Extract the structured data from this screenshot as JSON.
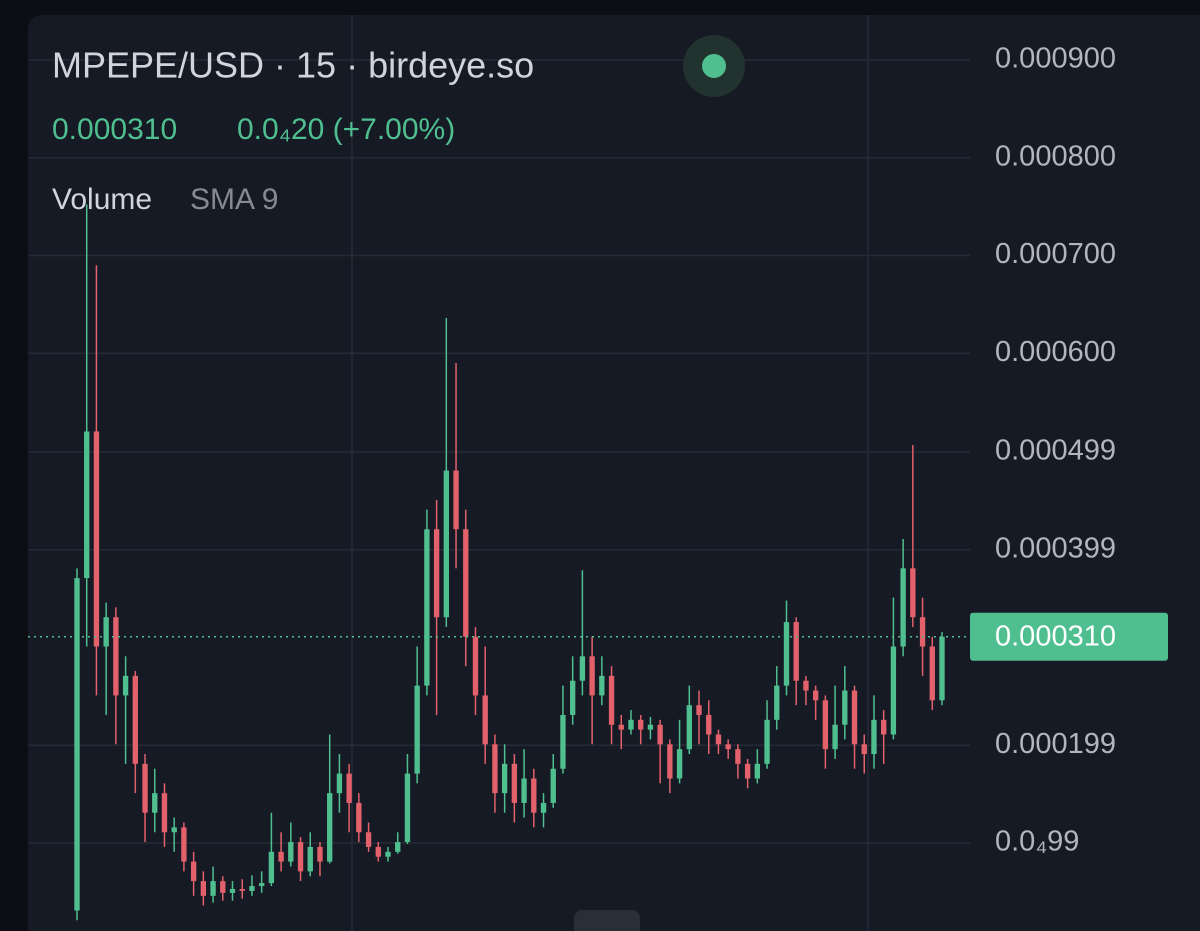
{
  "chart_data": {
    "type": "candlestick",
    "title": "MPEPE/USD · 15 · birdeye.so",
    "change": "0.0₄20 (+7.00%)",
    "indicator": "Volume",
    "indicator_setting": "SMA 9",
    "last_price": {
      "value": 0.00031,
      "label": "0.000310"
    },
    "up_color": "#4fbf8f",
    "down_color": "#e2616b",
    "ylim": [
      9e-06,
      0.000946
    ],
    "yticks": [
      {
        "value": 0.0009,
        "label": "0.000900"
      },
      {
        "value": 0.0008,
        "label": "0.000800"
      },
      {
        "value": 0.0007,
        "label": "0.000700"
      },
      {
        "value": 0.0006,
        "label": "0.000600"
      },
      0.000499,
      0.000399,
      0.000199,
      {
        "value": 9.9e-05,
        "label": "0.0₄99"
      }
    ],
    "grid": true,
    "series": [
      {
        "open": [
          3e-05,
          0.00037,
          0.00052,
          0.0003,
          0.00033,
          0.00025,
          0.00027,
          0.00018,
          0.00013,
          0.00015,
          0.00011,
          0.000115,
          8e-05,
          6e-05,
          4.5e-05,
          6e-05,
          4.8e-05,
          5.2e-05,
          5e-05,
          5.5e-05,
          5.8e-05,
          9e-05,
          8e-05,
          0.0001,
          7e-05,
          9.5e-05,
          8e-05,
          0.00015,
          0.00017,
          0.00014,
          0.00011,
          9.5e-05,
          8.5e-05,
          9e-05,
          0.0001,
          0.00017,
          0.00026,
          0.00042,
          0.00033,
          0.00048,
          0.00042,
          0.00031,
          0.00025,
          0.0002,
          0.00015,
          0.00018,
          0.00014,
          0.000165,
          0.00013,
          0.00014,
          0.000175,
          0.00023,
          0.000265,
          0.00029,
          0.00025,
          0.00027,
          0.00022,
          0.000215,
          0.000225,
          0.000215,
          0.00022,
          0.0002,
          0.000165,
          0.000195,
          0.00024,
          0.00023,
          0.00021,
          0.0002,
          0.000195,
          0.00018,
          0.000165,
          0.00018,
          0.000225,
          0.00026,
          0.000325,
          0.000265,
          0.000255,
          0.000245,
          0.000195,
          0.00022,
          0.000255,
          0.0002,
          0.00019,
          0.000225,
          0.00021,
          0.0003,
          0.00038,
          0.00033,
          0.0003,
          0.000245
        ],
        "high": [
          0.00038,
          0.000752,
          0.00069,
          0.000345,
          0.00034,
          0.00029,
          0.000275,
          0.00019,
          0.000175,
          0.00016,
          0.000125,
          0.00012,
          9e-05,
          7e-05,
          7.5e-05,
          6.5e-05,
          6e-05,
          6.2e-05,
          6.6e-05,
          7e-05,
          0.00013,
          0.00011,
          0.00012,
          0.000105,
          0.00011,
          0.0001,
          0.00021,
          0.00019,
          0.00018,
          0.00015,
          0.00012,
          0.0001,
          9.5e-05,
          0.00011,
          0.00019,
          0.0003,
          0.00044,
          0.00045,
          0.000636,
          0.00059,
          0.00044,
          0.00032,
          0.0003,
          0.00021,
          0.0002,
          0.00019,
          0.000195,
          0.000175,
          0.00015,
          0.00019,
          0.00026,
          0.00029,
          0.000378,
          0.00031,
          0.00029,
          0.00028,
          0.00023,
          0.000235,
          0.00023,
          0.000228,
          0.000225,
          0.000205,
          0.000225,
          0.00026,
          0.000255,
          0.000245,
          0.000215,
          0.000205,
          0.0002,
          0.000185,
          0.000195,
          0.000245,
          0.00028,
          0.000347,
          0.00033,
          0.00027,
          0.00026,
          0.00025,
          0.00026,
          0.00028,
          0.00026,
          0.00021,
          0.00025,
          0.000235,
          0.00035,
          0.00041,
          0.000506,
          0.00035,
          0.00031,
          0.000315
        ],
        "low": [
          2e-05,
          0.0003,
          0.00025,
          0.00023,
          0.0002,
          0.00018,
          0.00015,
          0.0001,
          0.00011,
          9.5e-05,
          9e-05,
          7e-05,
          4.5e-05,
          3.5e-05,
          3.8e-05,
          4e-05,
          4e-05,
          4.2e-05,
          4.5e-05,
          4.8e-05,
          5.5e-05,
          7e-05,
          7.5e-05,
          6e-05,
          6.5e-05,
          6.5e-05,
          7.8e-05,
          0.00013,
          0.00011,
          0.0001,
          9e-05,
          8e-05,
          8e-05,
          8.8e-05,
          9.8e-05,
          0.00016,
          0.00025,
          0.00023,
          0.00032,
          0.00038,
          0.00028,
          0.00023,
          0.00018,
          0.00013,
          0.00013,
          0.00012,
          0.000125,
          0.000115,
          0.000115,
          0.000135,
          0.00017,
          0.00022,
          0.00025,
          0.0002,
          0.00024,
          0.0002,
          0.000195,
          0.00021,
          0.0002,
          0.000205,
          0.00016,
          0.00015,
          0.00016,
          0.00019,
          0.0002,
          0.00019,
          0.00019,
          0.000185,
          0.000165,
          0.000155,
          0.00016,
          0.000175,
          0.000215,
          0.00025,
          0.00024,
          0.00024,
          0.000225,
          0.000175,
          0.000185,
          0.000205,
          0.000175,
          0.00017,
          0.000175,
          0.00018,
          0.000205,
          0.00029,
          0.00032,
          0.00027,
          0.000235,
          0.00024
        ],
        "close": [
          0.00037,
          0.00052,
          0.0003,
          0.00033,
          0.00025,
          0.00027,
          0.00018,
          0.00013,
          0.00015,
          0.00011,
          0.000115,
          8e-05,
          6e-05,
          4.5e-05,
          6e-05,
          4.8e-05,
          5.2e-05,
          5e-05,
          5.5e-05,
          5.8e-05,
          9e-05,
          8e-05,
          0.0001,
          7e-05,
          9.5e-05,
          8e-05,
          0.00015,
          0.00017,
          0.00014,
          0.00011,
          9.5e-05,
          8.5e-05,
          9e-05,
          0.0001,
          0.00017,
          0.00026,
          0.00042,
          0.00033,
          0.00048,
          0.00042,
          0.00031,
          0.00025,
          0.0002,
          0.00015,
          0.00018,
          0.00014,
          0.000165,
          0.00013,
          0.00014,
          0.000175,
          0.00023,
          0.000265,
          0.00029,
          0.00025,
          0.00027,
          0.00022,
          0.000215,
          0.000225,
          0.000215,
          0.00022,
          0.0002,
          0.000165,
          0.000195,
          0.00024,
          0.00023,
          0.00021,
          0.0002,
          0.000195,
          0.00018,
          0.000165,
          0.00018,
          0.000225,
          0.00026,
          0.000325,
          0.000265,
          0.000255,
          0.000245,
          0.000195,
          0.00022,
          0.000255,
          0.0002,
          0.00019,
          0.000225,
          0.00021,
          0.0003,
          0.00038,
          0.00033,
          0.0003,
          0.000245,
          0.00031
        ]
      }
    ]
  }
}
